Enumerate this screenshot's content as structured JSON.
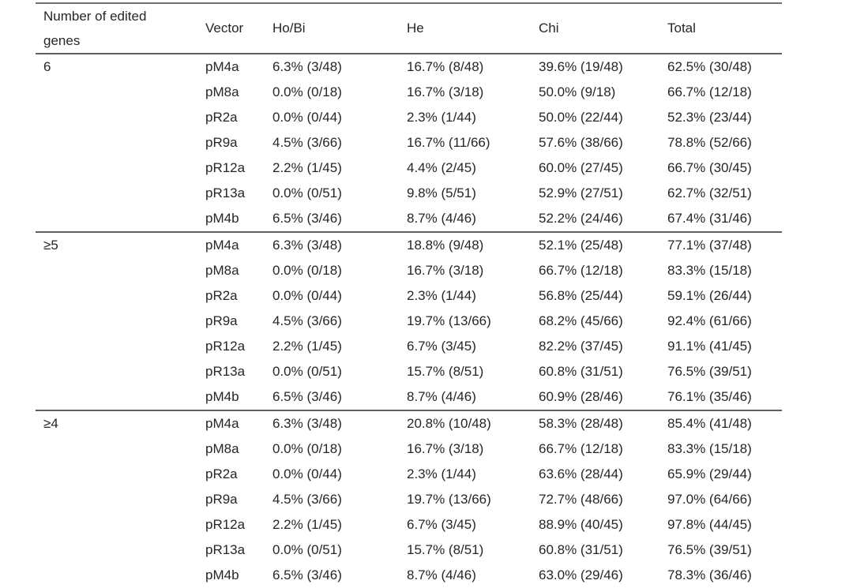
{
  "colors": {
    "background": "#ffffff",
    "text": "#262626",
    "rule_line": "#5f5f5f"
  },
  "table": {
    "headers": [
      "Number of edited genes",
      "Vector",
      "Ho/Bi",
      "He",
      "Chi",
      "Total"
    ],
    "groups": [
      {
        "label": "6",
        "rows": [
          {
            "vector": "pM4a",
            "hobi": "6.3% (3/48)",
            "he": "16.7% (8/48)",
            "chi": "39.6% (19/48)",
            "total": "62.5% (30/48)"
          },
          {
            "vector": "pM8a",
            "hobi": "0.0% (0/18)",
            "he": "16.7% (3/18)",
            "chi": "50.0% (9/18)",
            "total": "66.7% (12/18)"
          },
          {
            "vector": "pR2a",
            "hobi": "0.0% (0/44)",
            "he": "2.3% (1/44)",
            "chi": "50.0% (22/44)",
            "total": "52.3% (23/44)"
          },
          {
            "vector": "pR9a",
            "hobi": "4.5% (3/66)",
            "he": "16.7% (11/66)",
            "chi": "57.6% (38/66)",
            "total": "78.8% (52/66)"
          },
          {
            "vector": "pR12a",
            "hobi": "2.2% (1/45)",
            "he": "4.4% (2/45)",
            "chi": "60.0% (27/45)",
            "total": "66.7% (30/45)"
          },
          {
            "vector": "pR13a",
            "hobi": "0.0% (0/51)",
            "he": "9.8% (5/51)",
            "chi": "52.9% (27/51)",
            "total": "62.7% (32/51)"
          },
          {
            "vector": "pM4b",
            "hobi": "6.5% (3/46)",
            "he": "8.7% (4/46)",
            "chi": "52.2% (24/46)",
            "total": "67.4% (31/46)"
          }
        ]
      },
      {
        "label": "≥5",
        "rows": [
          {
            "vector": "pM4a",
            "hobi": "6.3% (3/48)",
            "he": "18.8% (9/48)",
            "chi": "52.1% (25/48)",
            "total": "77.1% (37/48)"
          },
          {
            "vector": "pM8a",
            "hobi": "0.0% (0/18)",
            "he": "16.7% (3/18)",
            "chi": "66.7% (12/18)",
            "total": "83.3% (15/18)"
          },
          {
            "vector": "pR2a",
            "hobi": "0.0% (0/44)",
            "he": "2.3% (1/44)",
            "chi": "56.8% (25/44)",
            "total": "59.1% (26/44)"
          },
          {
            "vector": "pR9a",
            "hobi": "4.5% (3/66)",
            "he": "19.7% (13/66)",
            "chi": "68.2% (45/66)",
            "total": "92.4% (61/66)"
          },
          {
            "vector": "pR12a",
            "hobi": "2.2% (1/45)",
            "he": "6.7% (3/45)",
            "chi": "82.2% (37/45)",
            "total": "91.1% (41/45)"
          },
          {
            "vector": "pR13a",
            "hobi": "0.0% (0/51)",
            "he": "15.7% (8/51)",
            "chi": "60.8% (31/51)",
            "total": "76.5% (39/51)"
          },
          {
            "vector": "pM4b",
            "hobi": "6.5% (3/46)",
            "he": "8.7% (4/46)",
            "chi": "60.9% (28/46)",
            "total": "76.1% (35/46)"
          }
        ]
      },
      {
        "label": "≥4",
        "rows": [
          {
            "vector": "pM4a",
            "hobi": "6.3% (3/48)",
            "he": "20.8% (10/48)",
            "chi": "58.3% (28/48)",
            "total": "85.4% (41/48)"
          },
          {
            "vector": "pM8a",
            "hobi": "0.0% (0/18)",
            "he": "16.7% (3/18)",
            "chi": "66.7% (12/18)",
            "total": "83.3% (15/18)"
          },
          {
            "vector": "pR2a",
            "hobi": "0.0% (0/44)",
            "he": "2.3% (1/44)",
            "chi": "63.6% (28/44)",
            "total": "65.9% (29/44)"
          },
          {
            "vector": "pR9a",
            "hobi": "4.5% (3/66)",
            "he": "19.7% (13/66)",
            "chi": "72.7% (48/66)",
            "total": "97.0% (64/66)"
          },
          {
            "vector": "pR12a",
            "hobi": "2.2% (1/45)",
            "he": "6.7% (3/45)",
            "chi": "88.9% (40/45)",
            "total": "97.8% (44/45)"
          },
          {
            "vector": "pR13a",
            "hobi": "0.0% (0/51)",
            "he": "15.7% (8/51)",
            "chi": "60.8% (31/51)",
            "total": "76.5% (39/51)"
          },
          {
            "vector": "pM4b",
            "hobi": "6.5% (3/46)",
            "he": "8.7% (4/46)",
            "chi": "63.0% (29/46)",
            "total": "78.3% (36/46)"
          }
        ]
      }
    ]
  }
}
